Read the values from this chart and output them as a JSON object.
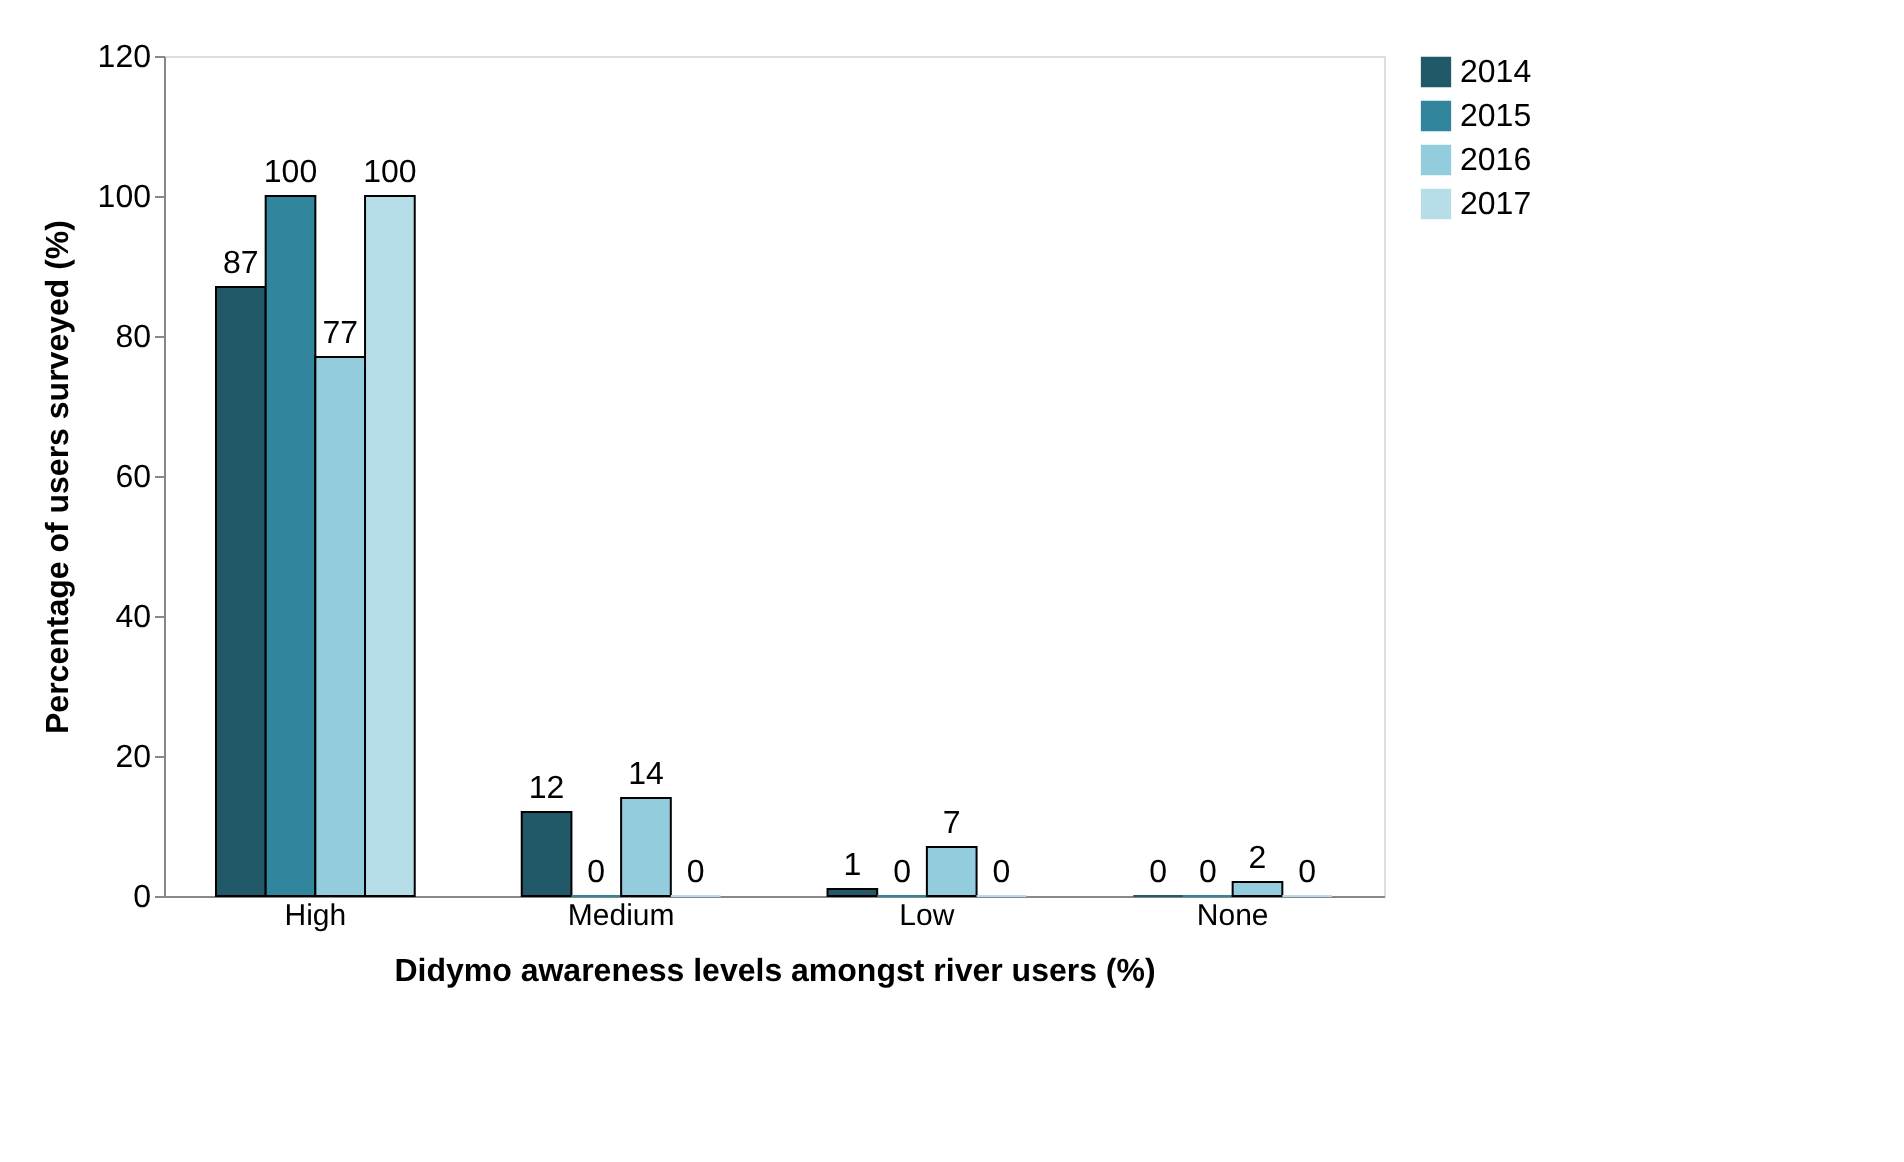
{
  "chart_data": {
    "type": "bar",
    "xlabel": "Didymo awareness levels amongst river users (%)",
    "ylabel": "Percentage of users surveyed (%)",
    "categories": [
      "High",
      "Medium",
      "Low",
      "None"
    ],
    "series": [
      {
        "name": "2014",
        "color": "#215968",
        "values": [
          87,
          12,
          1,
          0
        ]
      },
      {
        "name": "2015",
        "color": "#31859c",
        "values": [
          100,
          0,
          0,
          0
        ]
      },
      {
        "name": "2016",
        "color": "#93cddd",
        "values": [
          77,
          14,
          7,
          2
        ]
      },
      {
        "name": "2017",
        "color": "#b7dee8",
        "values": [
          100,
          0,
          0,
          0
        ]
      }
    ],
    "ylim": [
      0,
      120
    ],
    "yticks": [
      0,
      20,
      40,
      60,
      80,
      100,
      120
    ],
    "grid": false,
    "legend": "right",
    "data_labels": true
  }
}
